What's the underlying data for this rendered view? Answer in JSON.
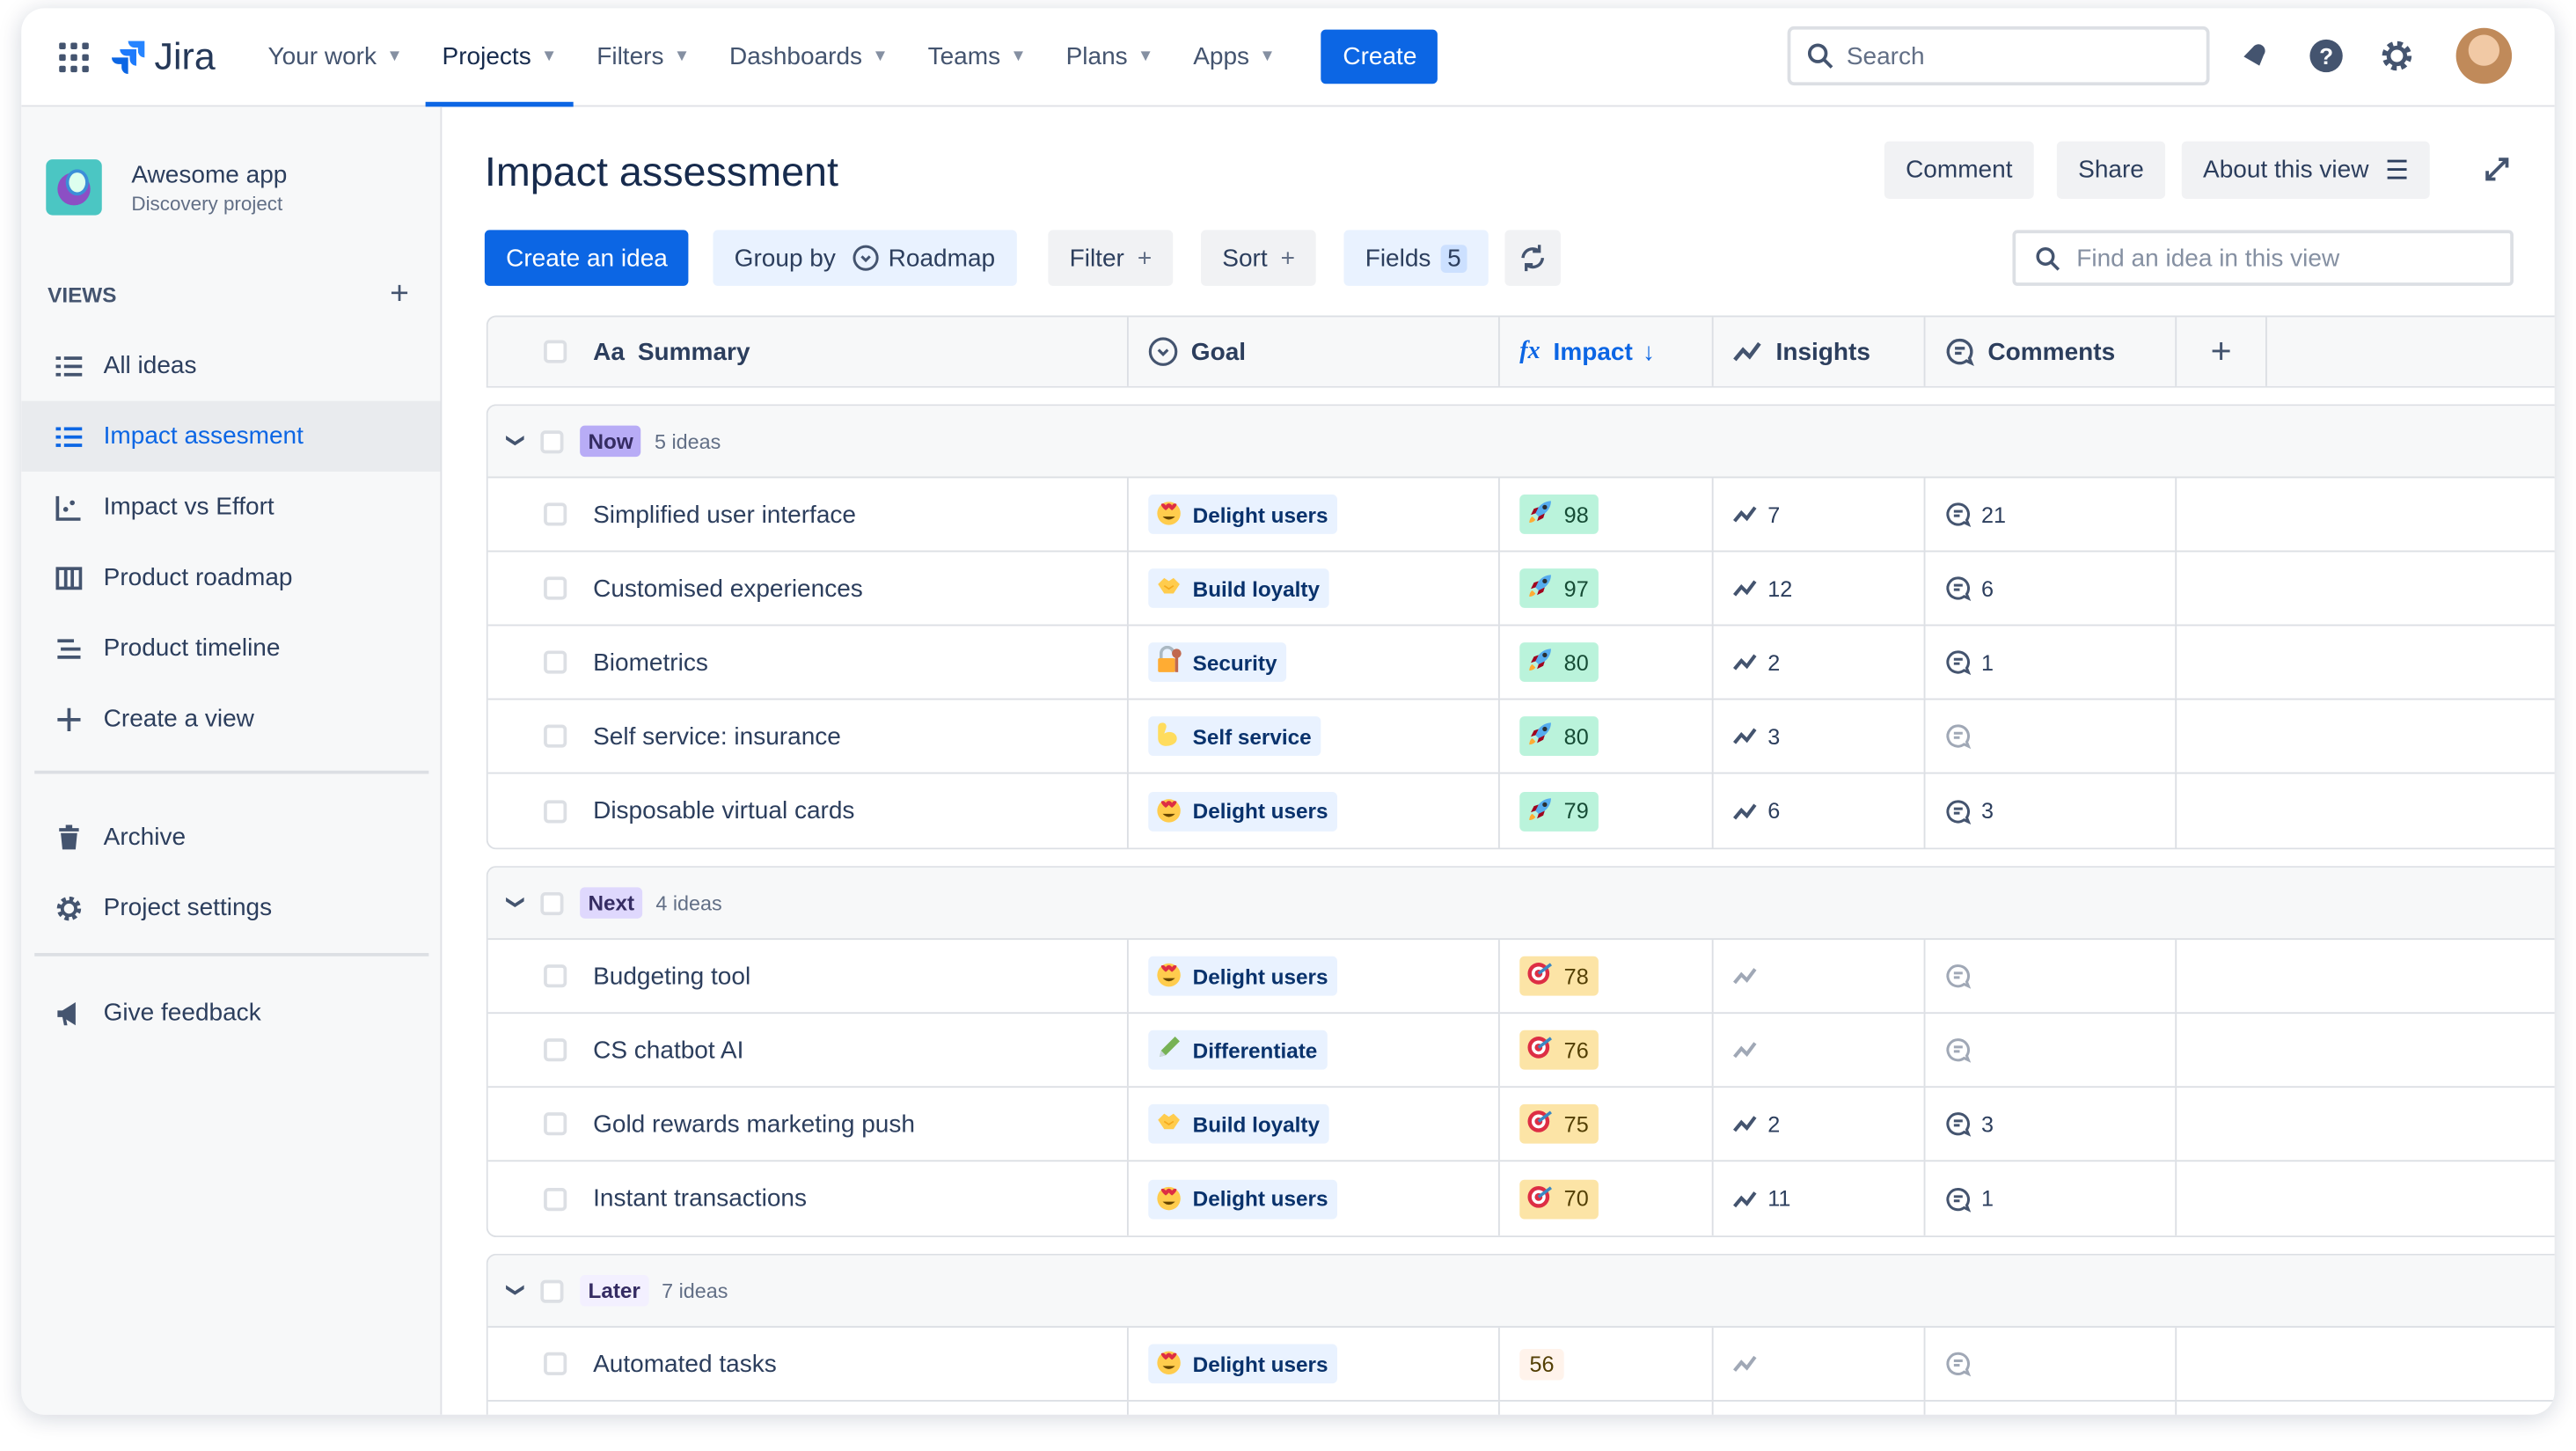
{
  "nav": {
    "product": "Jira",
    "items": [
      {
        "label": "Your work"
      },
      {
        "label": "Projects",
        "active": true
      },
      {
        "label": "Filters"
      },
      {
        "label": "Dashboards"
      },
      {
        "label": "Teams"
      },
      {
        "label": "Plans"
      },
      {
        "label": "Apps"
      }
    ],
    "create": "Create",
    "search_placeholder": "Search"
  },
  "sidebar": {
    "project_name": "Awesome app",
    "project_type": "Discovery project",
    "views_label": "VIEWS",
    "items": [
      {
        "label": "All ideas",
        "icon": "list-icon"
      },
      {
        "label": "Impact assesment",
        "icon": "list-icon",
        "selected": true
      },
      {
        "label": "Impact vs Effort",
        "icon": "scatter-chart-icon"
      },
      {
        "label": "Product roadmap",
        "icon": "board-icon"
      },
      {
        "label": "Product timeline",
        "icon": "timeline-icon"
      },
      {
        "label": "Create a view",
        "icon": "plus-icon"
      }
    ],
    "items2": [
      {
        "label": "Archive",
        "icon": "trash-icon"
      },
      {
        "label": "Project settings",
        "icon": "gear-icon"
      }
    ],
    "feedback": "Give feedback"
  },
  "page": {
    "title": "Impact assessment",
    "comment": "Comment",
    "share": "Share",
    "about": "About this view"
  },
  "toolbar": {
    "create_idea": "Create an idea",
    "group_by": "Group by",
    "group_value": "Roadmap",
    "filter": "Filter",
    "sort": "Sort",
    "fields": "Fields",
    "fields_count": "5",
    "find_placeholder": "Find an idea in this view"
  },
  "columns": {
    "summary": "Summary",
    "summary_prefix": "Aa",
    "goal": "Goal",
    "impact": "Impact",
    "impact_prefix": "fx",
    "insights": "Insights",
    "comments": "Comments"
  },
  "colors": {
    "accent": "#0c66e4",
    "now": "#b8acf6",
    "next": "#dfd8fd",
    "later": "#f3f0ff"
  },
  "groups": [
    {
      "label": "Now",
      "count": "5 ideas",
      "color": "#b8acf6",
      "rows": [
        {
          "summary": "Simplified user interface",
          "goal": "Delight users",
          "goal_icon": "heart-eyes",
          "impact": "98",
          "impact_icon": "rocket",
          "insights": "7",
          "comments": "21"
        },
        {
          "summary": "Customised experiences",
          "goal": "Build loyalty",
          "goal_icon": "handshake",
          "impact": "97",
          "impact_icon": "rocket",
          "insights": "12",
          "comments": "6"
        },
        {
          "summary": "Biometrics",
          "goal": "Security",
          "goal_icon": "lock",
          "impact": "80",
          "impact_icon": "rocket",
          "insights": "2",
          "comments": "1"
        },
        {
          "summary": "Self service: insurance",
          "goal": "Self service",
          "goal_icon": "muscle",
          "impact": "80",
          "impact_icon": "rocket",
          "insights": "3",
          "comments": ""
        },
        {
          "summary": "Disposable virtual cards",
          "goal": "Delight users",
          "goal_icon": "heart-eyes",
          "impact": "79",
          "impact_icon": "rocket",
          "insights": "6",
          "comments": "3"
        }
      ]
    },
    {
      "label": "Next",
      "count": "4 ideas",
      "color": "#dfd8fd",
      "rows": [
        {
          "summary": "Budgeting tool",
          "goal": "Delight users",
          "goal_icon": "heart-eyes",
          "impact": "78",
          "impact_icon": "target",
          "insights": "",
          "comments": ""
        },
        {
          "summary": "CS chatbot AI",
          "goal": "Differentiate",
          "goal_icon": "pencil",
          "impact": "76",
          "impact_icon": "target",
          "insights": "",
          "comments": ""
        },
        {
          "summary": "Gold rewards marketing push",
          "goal": "Build loyalty",
          "goal_icon": "handshake",
          "impact": "75",
          "impact_icon": "target",
          "insights": "2",
          "comments": "3"
        },
        {
          "summary": "Instant transactions",
          "goal": "Delight users",
          "goal_icon": "heart-eyes",
          "impact": "70",
          "impact_icon": "target",
          "insights": "11",
          "comments": "1"
        }
      ]
    },
    {
      "label": "Later",
      "count": "7 ideas",
      "color": "#f3f0ff",
      "rows": [
        {
          "summary": "Automated tasks",
          "goal": "Delight users",
          "goal_icon": "heart-eyes",
          "impact": "56",
          "impact_icon": "",
          "insights": "",
          "comments": ""
        },
        {
          "summary": "",
          "goal": "",
          "goal_icon": "",
          "impact": "",
          "impact_icon": "",
          "insights": "",
          "comments": ""
        }
      ]
    }
  ]
}
